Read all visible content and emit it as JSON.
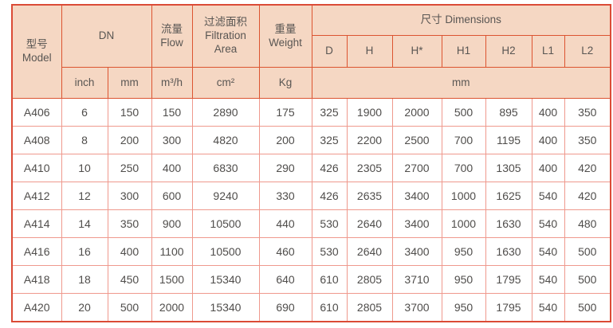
{
  "table": {
    "header": {
      "model_zh": "型号",
      "model_en": "Model",
      "dn": "DN",
      "flow_zh": "流量",
      "flow_en": "Flow",
      "area_zh": "过滤面积",
      "area_en": "Filtration Area",
      "weight_zh": "重量",
      "weight_en": "Weight",
      "dimensions": "尺寸 Dimensions",
      "dim_cols": [
        "D",
        "H",
        "H*",
        "H1",
        "H2",
        "L1",
        "L2"
      ],
      "unit_inch": "inch",
      "unit_mm": "mm",
      "unit_flow": "m³/h",
      "unit_area": "cm²",
      "unit_weight": "Kg",
      "unit_dims": "mm"
    },
    "rows": [
      {
        "model": "A406",
        "inch": "6",
        "mm": "150",
        "flow": "150",
        "area": "2890",
        "weight": "175",
        "dims": [
          "325",
          "1900",
          "2000",
          "500",
          "895",
          "400",
          "350"
        ]
      },
      {
        "model": "A408",
        "inch": "8",
        "mm": "200",
        "flow": "300",
        "area": "4820",
        "weight": "200",
        "dims": [
          "325",
          "2200",
          "2500",
          "700",
          "1195",
          "400",
          "350"
        ]
      },
      {
        "model": "A410",
        "inch": "10",
        "mm": "250",
        "flow": "400",
        "area": "6830",
        "weight": "290",
        "dims": [
          "426",
          "2305",
          "2700",
          "700",
          "1305",
          "400",
          "420"
        ]
      },
      {
        "model": "A412",
        "inch": "12",
        "mm": "300",
        "flow": "600",
        "area": "9240",
        "weight": "330",
        "dims": [
          "426",
          "2635",
          "3400",
          "1000",
          "1625",
          "540",
          "420"
        ]
      },
      {
        "model": "A414",
        "inch": "14",
        "mm": "350",
        "flow": "900",
        "area": "10500",
        "weight": "440",
        "dims": [
          "530",
          "2640",
          "3400",
          "1000",
          "1630",
          "540",
          "480"
        ]
      },
      {
        "model": "A416",
        "inch": "16",
        "mm": "400",
        "flow": "1100",
        "area": "10500",
        "weight": "460",
        "dims": [
          "530",
          "2640",
          "3400",
          "950",
          "1630",
          "540",
          "500"
        ]
      },
      {
        "model": "A418",
        "inch": "18",
        "mm": "450",
        "flow": "1500",
        "area": "15340",
        "weight": "640",
        "dims": [
          "610",
          "2805",
          "3710",
          "950",
          "1795",
          "540",
          "500"
        ]
      },
      {
        "model": "A420",
        "inch": "20",
        "mm": "500",
        "flow": "2000",
        "area": "15340",
        "weight": "690",
        "dims": [
          "610",
          "2805",
          "3700",
          "950",
          "1795",
          "540",
          "500"
        ]
      }
    ],
    "colors": {
      "header_bg": "#f5d7c3",
      "strong_border": "#dc5430",
      "light_border": "#ef998d",
      "text": "#4f4d4b"
    }
  }
}
